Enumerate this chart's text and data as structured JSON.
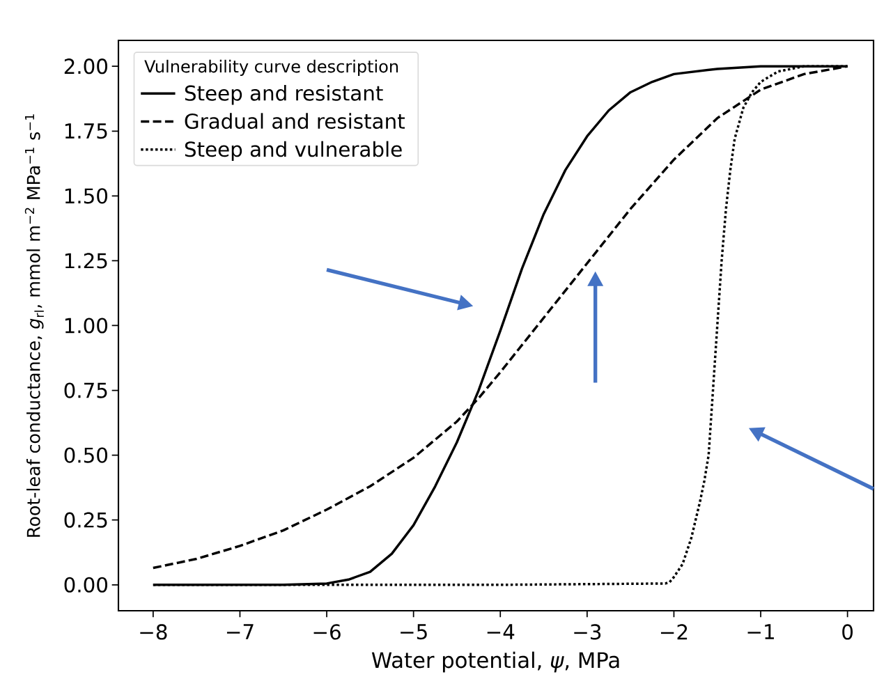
{
  "chart_data": {
    "type": "line",
    "xlabel": "Water potential, *ψ*, MPa",
    "ylabel": "Root-leaf conductance, *g*$_{rl}$, mmol m$^{−2}$ MPa$^{−1}$ s$^{−1}$",
    "legend_title": "Vulnerability curve description",
    "legend": "top left",
    "xlim": [
      -8.4,
      0.3
    ],
    "ylim": [
      -0.1,
      2.1
    ],
    "xticks": [
      {
        "value": -8,
        "label": "−8"
      },
      {
        "value": -7,
        "label": "−7"
      },
      {
        "value": -6,
        "label": "−6"
      },
      {
        "value": -5,
        "label": "−5"
      },
      {
        "value": -4,
        "label": "−4"
      },
      {
        "value": -3,
        "label": "−3"
      },
      {
        "value": -2,
        "label": "−2"
      },
      {
        "value": -1,
        "label": "−1"
      },
      {
        "value": 0,
        "label": "0"
      }
    ],
    "yticks": [
      {
        "value": 0,
        "label": "0.00"
      },
      {
        "value": 0.25,
        "label": "0.25"
      },
      {
        "value": 0.5,
        "label": "0.50"
      },
      {
        "value": 0.75,
        "label": "0.75"
      },
      {
        "value": 1,
        "label": "1.00"
      },
      {
        "value": 1.25,
        "label": "1.25"
      },
      {
        "value": 1.5,
        "label": "1.50"
      },
      {
        "value": 1.75,
        "label": "1.75"
      },
      {
        "value": 2,
        "label": "2.00"
      }
    ],
    "series": [
      {
        "name": "Steep and resistant",
        "color": "#000000",
        "line_style": "solid",
        "x": [
          -8,
          -7,
          -6.5,
          -6,
          -5.75,
          -5.5,
          -5.25,
          -5,
          -4.75,
          -4.5,
          -4.25,
          -4,
          -3.75,
          -3.5,
          -3.25,
          -3,
          -2.75,
          -2.5,
          -2.25,
          -2,
          -1.5,
          -1,
          0
        ],
        "values": [
          0,
          0,
          0,
          0.005,
          0.02,
          0.05,
          0.12,
          0.23,
          0.38,
          0.55,
          0.75,
          0.98,
          1.22,
          1.43,
          1.6,
          1.73,
          1.83,
          1.9,
          1.94,
          1.97,
          1.99,
          2.0,
          2.0
        ]
      },
      {
        "name": "Gradual and resistant",
        "color": "#000000",
        "line_style": "dashed",
        "x": [
          -8,
          -7.5,
          -7,
          -6.5,
          -6,
          -5.5,
          -5,
          -4.5,
          -4.25,
          -4,
          -3.5,
          -3,
          -2.5,
          -2,
          -1.5,
          -1,
          -0.5,
          0
        ],
        "values": [
          0.065,
          0.1,
          0.15,
          0.21,
          0.29,
          0.38,
          0.49,
          0.63,
          0.72,
          0.82,
          1.03,
          1.24,
          1.45,
          1.64,
          1.8,
          1.91,
          1.97,
          2.0
        ]
      },
      {
        "name": "Steep and vulnerable",
        "color": "#000000",
        "line_style": "dotted",
        "x": [
          -8,
          -6.5,
          -4,
          -2.1,
          -2.05,
          -2,
          -1.9,
          -1.8,
          -1.7,
          -1.65,
          -1.6,
          -1.55,
          -1.5,
          -1.45,
          -1.4,
          -1.35,
          -1.3,
          -1.2,
          -1.1,
          -1,
          -0.8,
          -0.5,
          0
        ],
        "values": [
          0,
          0,
          0,
          0.005,
          0.01,
          0.03,
          0.08,
          0.18,
          0.32,
          0.4,
          0.5,
          0.75,
          1.0,
          1.25,
          1.45,
          1.6,
          1.72,
          1.84,
          1.9,
          1.94,
          1.98,
          2.0,
          2.0
        ]
      }
    ]
  }
}
